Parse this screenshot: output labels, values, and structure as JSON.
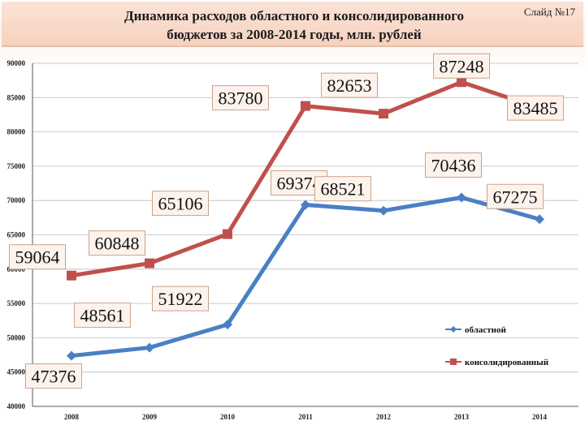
{
  "header": {
    "title": "Динамика расходов областного и консолидированного\nбюджетов за 2008-2014 годы, млн. рублей",
    "slide_label": "Слайд №17"
  },
  "chart_data": {
    "type": "line",
    "categories": [
      "2008",
      "2009",
      "2010",
      "2011",
      "2012",
      "2013",
      "2014"
    ],
    "ylim": [
      40000,
      90000
    ],
    "yticks": [
      "40000",
      "45000",
      "50000",
      "55000",
      "60000",
      "65000",
      "70000",
      "75000",
      "80000",
      "85000",
      "90000"
    ],
    "grid": true,
    "legend_position": "right",
    "series": [
      {
        "name": "областной",
        "color": "#4a7fc4",
        "marker": "diamond",
        "values": [
          47376,
          48561,
          51922,
          69374,
          68521,
          70436,
          67275
        ],
        "labels": [
          "47376",
          "48561",
          "51922",
          "69374",
          "68521",
          "70436",
          "67275"
        ]
      },
      {
        "name": "консолидированный",
        "color": "#c0504d",
        "marker": "square",
        "values": [
          59064,
          60848,
          65106,
          83780,
          82653,
          87248,
          83485
        ],
        "labels": [
          "59064",
          "60848",
          "65106",
          "83780",
          "82653",
          "87248",
          "83485"
        ]
      }
    ]
  }
}
